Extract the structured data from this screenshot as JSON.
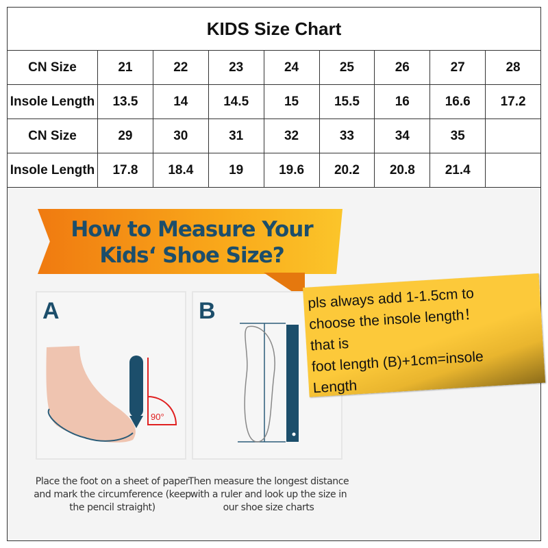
{
  "chart_title": "KIDS Size Chart",
  "rows": [
    {
      "label": "CN Size",
      "values": [
        "21",
        "22",
        "23",
        "24",
        "25",
        "26",
        "27",
        "28"
      ]
    },
    {
      "label": "Insole Length",
      "values": [
        "13.5",
        "14",
        "14.5",
        "15",
        "15.5",
        "16",
        "16.6",
        "17.2"
      ]
    },
    {
      "label": "CN Size",
      "values": [
        "29",
        "30",
        "31",
        "32",
        "33",
        "34",
        "35",
        ""
      ]
    },
    {
      "label": "Insole Length",
      "values": [
        "17.8",
        "18.4",
        "19",
        "19.6",
        "20.2",
        "20.8",
        "21.4",
        ""
      ]
    }
  ],
  "guide": {
    "banner_line1": "How to Measure Your",
    "banner_line2": "Kids‘ Shoe Size?",
    "panel_a": {
      "letter": "A",
      "angle": "90°",
      "caption": "Place the foot on a sheet of paper and mark the circumference (keep the pencil straight)"
    },
    "panel_b": {
      "letter": "B",
      "caption": "Then measure the longest distance with a ruler and look up the size in our shoe size charts"
    }
  },
  "note": {
    "lines": [
      "pls always add 1-1.5cm to",
      "choose the insole length！",
      "that is",
      "foot length (B)+1cm=insole",
      "Length"
    ]
  },
  "colors": {
    "banner": "#f7a01a",
    "heading_text": "#1c4e6b",
    "note": "#fcc93a",
    "angle": "#e02020"
  }
}
